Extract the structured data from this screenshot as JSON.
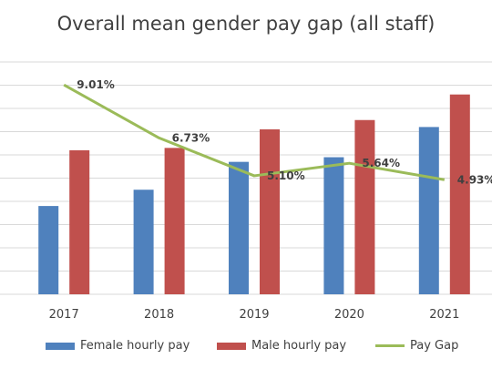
{
  "chart_data": {
    "type": "bar",
    "title": "Overall mean gender pay gap (all staff)",
    "categories": [
      "2017",
      "2018",
      "2019",
      "2020",
      "2021"
    ],
    "series": [
      {
        "name": "Female hourly pay",
        "kind": "bar",
        "color": "#4f81bd",
        "values": [
          3.8,
          4.5,
          5.7,
          5.9,
          7.2
        ]
      },
      {
        "name": "Male hourly pay",
        "kind": "bar",
        "color": "#c0504d",
        "values": [
          6.2,
          6.3,
          7.1,
          7.5,
          8.6
        ]
      },
      {
        "name": "Pay Gap",
        "kind": "line",
        "color": "#9bbb59",
        "values": [
          9.01,
          6.73,
          5.1,
          5.64,
          4.93
        ],
        "labels": [
          "9.01%",
          "6.73%",
          "5.10%",
          "5.64%",
          "4.93%"
        ]
      }
    ],
    "bar_ylim": [
      0,
      10
    ],
    "line_ylim": [
      0,
      10
    ],
    "grid": true,
    "legend_position": "bottom"
  }
}
